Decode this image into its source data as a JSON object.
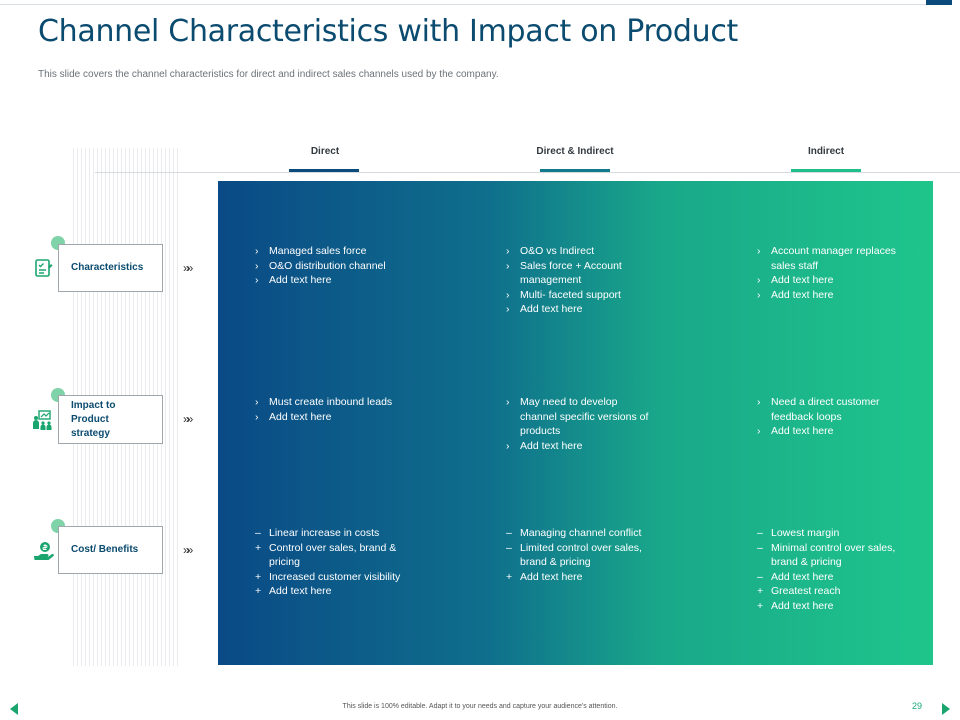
{
  "slide": {
    "title": "Channel Characteristics with Impact on Product",
    "subtitle": "This slide covers the channel characteristics for direct and indirect sales channels used by the company.",
    "footer_note": "This slide is 100% editable. Adapt it to your needs and capture your audience's attention.",
    "page_number": "29"
  },
  "colors": {
    "title": "#0b4b6f",
    "panel_start": "#0a4a86",
    "panel_end": "#1fc58b",
    "accent_green": "#1aa56f",
    "dot_green": "#7fd3a9"
  },
  "columns": [
    {
      "label": "Direct",
      "bar_color": "#0b4b7c"
    },
    {
      "label": "Direct & Indirect",
      "bar_color": "#137a8c"
    },
    {
      "label": "Indirect",
      "bar_color": "#1fbf8b"
    }
  ],
  "rows": [
    {
      "label_lines": [
        "Characteristics"
      ],
      "icon": "checklist-icon"
    },
    {
      "label_lines": [
        "Impact to",
        "Product",
        "strategy"
      ],
      "icon": "team-chart-icon"
    },
    {
      "label_lines": [
        "Cost/ Benefits"
      ],
      "icon": "hand-money-icon"
    }
  ],
  "arrows": "»»",
  "cells": [
    [
      [
        {
          "m": "›",
          "t": "Managed  sales force"
        },
        {
          "m": "›",
          "t": "O&O distribution channel"
        },
        {
          "m": "›",
          "t": "Add text here"
        }
      ],
      [
        {
          "m": "›",
          "t": "O&O vs Indirect"
        },
        {
          "m": "›",
          "t": "Sales force + Account management"
        },
        {
          "m": "›",
          "t": "Multi- faceted support"
        },
        {
          "m": "›",
          "t": "Add text here"
        }
      ],
      [
        {
          "m": "›",
          "t": "Account manager replaces sales staff"
        },
        {
          "m": "›",
          "t": "Add text here"
        },
        {
          "m": "›",
          "t": "Add text here"
        }
      ]
    ],
    [
      [
        {
          "m": "›",
          "t": "Must create inbound leads"
        },
        {
          "m": "›",
          "t": "Add text here"
        }
      ],
      [
        {
          "m": "›",
          "t": "May need to develop channel specific versions of products"
        },
        {
          "m": "›",
          "t": "Add text here"
        }
      ],
      [
        {
          "m": "›",
          "t": "Need a direct customer feedback loops"
        },
        {
          "m": "›",
          "t": "Add text here"
        }
      ]
    ],
    [
      [
        {
          "m": "–",
          "t": "Linear increase in costs"
        },
        {
          "m": "+",
          "t": "Control over sales, brand & pricing"
        },
        {
          "m": "+",
          "t": "Increased customer visibility"
        },
        {
          "m": "+",
          "t": "Add text here"
        }
      ],
      [
        {
          "m": "–",
          "t": "Managing  channel conflict"
        },
        {
          "m": "–",
          "t": "Limited control over sales, brand & pricing"
        },
        {
          "m": "+",
          "t": "Add text here"
        }
      ],
      [
        {
          "m": "–",
          "t": "Lowest margin"
        },
        {
          "m": "–",
          "t": "Minimal control over sales, brand & pricing"
        },
        {
          "m": "–",
          "t": "Add text here"
        },
        {
          "m": "+",
          "t": "Greatest  reach"
        },
        {
          "m": "+",
          "t": "Add text here"
        }
      ]
    ]
  ]
}
